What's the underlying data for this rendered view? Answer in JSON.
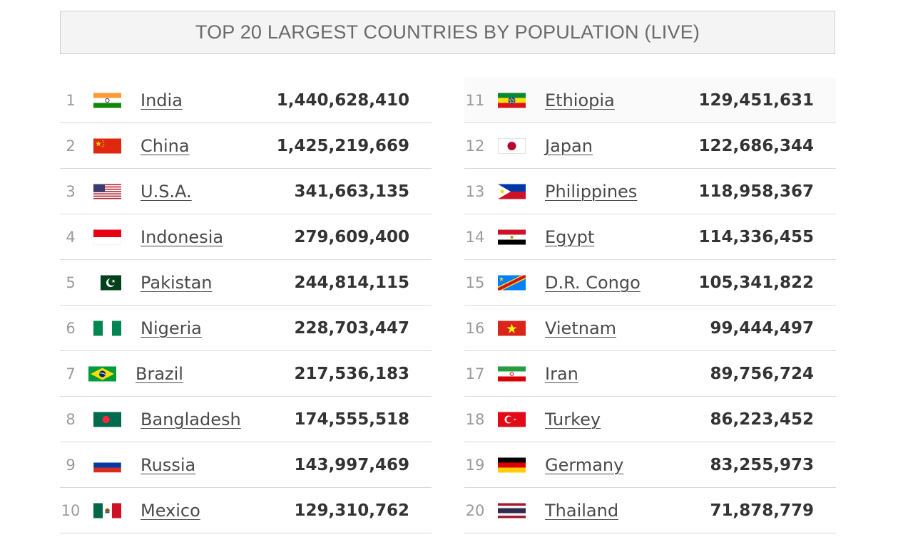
{
  "title": "TOP 20 LARGEST COUNTRIES BY POPULATION (LIVE)",
  "left": [
    {
      "rank": "1",
      "name": "India",
      "population": "1,440,628,410",
      "flag": "india-flag-icon"
    },
    {
      "rank": "2",
      "name": "China",
      "population": "1,425,219,669",
      "flag": "china-flag-icon"
    },
    {
      "rank": "3",
      "name": "U.S.A.",
      "population": "341,663,135",
      "flag": "usa-flag-icon"
    },
    {
      "rank": "4",
      "name": "Indonesia",
      "population": "279,609,400",
      "flag": "indonesia-flag-icon"
    },
    {
      "rank": "5",
      "name": "Pakistan",
      "population": "244,814,115",
      "flag": "pakistan-flag-icon"
    },
    {
      "rank": "6",
      "name": "Nigeria",
      "population": "228,703,447",
      "flag": "nigeria-flag-icon"
    },
    {
      "rank": "7",
      "name": "Brazil",
      "population": "217,536,183",
      "flag": "brazil-flag-icon"
    },
    {
      "rank": "8",
      "name": "Bangladesh",
      "population": "174,555,518",
      "flag": "bangladesh-flag-icon"
    },
    {
      "rank": "9",
      "name": "Russia",
      "population": "143,997,469",
      "flag": "russia-flag-icon"
    },
    {
      "rank": "10",
      "name": "Mexico",
      "population": "129,310,762",
      "flag": "mexico-flag-icon"
    }
  ],
  "right": [
    {
      "rank": "11",
      "name": "Ethiopia",
      "population": "129,451,631",
      "flag": "ethiopia-flag-icon"
    },
    {
      "rank": "12",
      "name": "Japan",
      "population": "122,686,344",
      "flag": "japan-flag-icon"
    },
    {
      "rank": "13",
      "name": "Philippines",
      "population": "118,958,367",
      "flag": "philippines-flag-icon"
    },
    {
      "rank": "14",
      "name": "Egypt",
      "population": "114,336,455",
      "flag": "egypt-flag-icon"
    },
    {
      "rank": "15",
      "name": "D.R. Congo",
      "population": "105,341,822",
      "flag": "dr-congo-flag-icon"
    },
    {
      "rank": "16",
      "name": "Vietnam",
      "population": "99,444,497",
      "flag": "vietnam-flag-icon"
    },
    {
      "rank": "17",
      "name": "Iran",
      "population": "89,756,724",
      "flag": "iran-flag-icon"
    },
    {
      "rank": "18",
      "name": "Turkey",
      "population": "86,223,452",
      "flag": "turkey-flag-icon"
    },
    {
      "rank": "19",
      "name": "Germany",
      "population": "83,255,973",
      "flag": "germany-flag-icon"
    },
    {
      "rank": "20",
      "name": "Thailand",
      "population": "71,878,779",
      "flag": "thailand-flag-icon"
    }
  ]
}
